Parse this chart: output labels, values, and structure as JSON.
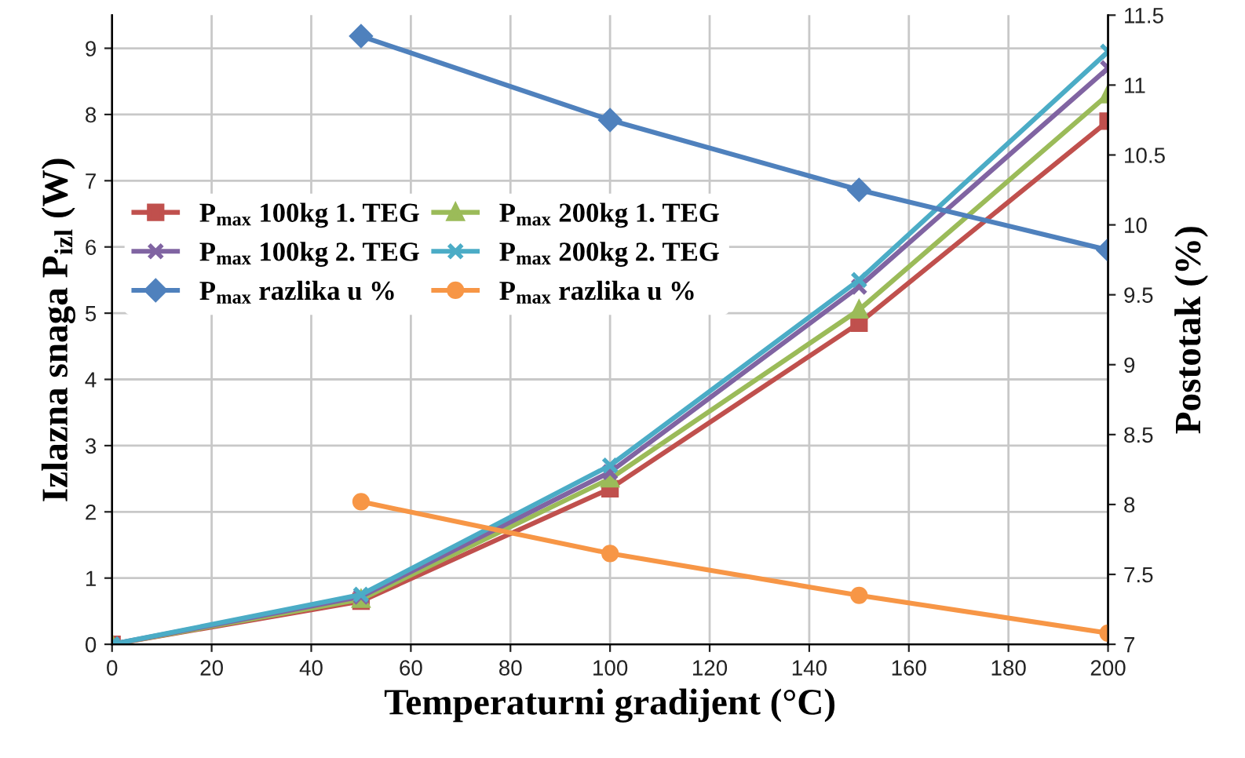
{
  "chart_data": {
    "type": "line",
    "xlabel": "Temperaturni gradijent (°C)",
    "ylabel": "Izlazna snaga P$_{izl}$ (W)",
    "y2label": "Postotak (%)",
    "x": [
      0,
      50,
      100,
      150,
      200
    ],
    "series": [
      {
        "name": "P$_{max}$ 100kg 1. TEG",
        "color": "#c0504d",
        "marker": "square",
        "values": [
          0,
          0.65,
          2.35,
          4.85,
          7.9
        ]
      },
      {
        "name": "P$_{max}$ 200kg 1. TEG",
        "color": "#9bbb59",
        "marker": "triangle",
        "values": [
          0,
          0.68,
          2.5,
          5.05,
          8.3
        ]
      },
      {
        "name": "P$_{max}$ 100kg 2. TEG",
        "color": "#8064a2",
        "marker": "cross",
        "values": [
          0,
          0.72,
          2.6,
          5.4,
          8.7
        ]
      },
      {
        "name": "P$_{max}$ 200kg 2. TEG",
        "color": "#4bacc6",
        "marker": "cross",
        "values": [
          0,
          0.75,
          2.7,
          5.5,
          8.95
        ]
      },
      {
        "name": "P$_{max}$ razlika u %",
        "color": "#4f81bd",
        "marker": "diamond",
        "axis": "y2",
        "x": [
          50,
          100,
          150,
          200
        ],
        "values": [
          11.35,
          10.75,
          10.25,
          9.82
        ]
      },
      {
        "name": "P$_{max}$ razlika u %",
        "color": "#f79646",
        "marker": "circle",
        "axis": "y2",
        "x": [
          50,
          100,
          150,
          200
        ],
        "values": [
          8.02,
          7.65,
          7.35,
          7.08
        ]
      }
    ],
    "xlim": [
      0,
      200
    ],
    "xticks": [
      0,
      20,
      40,
      60,
      80,
      100,
      120,
      140,
      160,
      180,
      200
    ],
    "ylim": [
      0,
      9.5
    ],
    "yticks": [
      0,
      1,
      2,
      3,
      4,
      5,
      6,
      7,
      8,
      9
    ],
    "y2lim": [
      7,
      11.5
    ],
    "y2ticks": [
      7,
      7.5,
      8,
      8.5,
      9,
      9.5,
      10,
      10.5,
      11,
      11.5
    ],
    "grid": true,
    "legend": "left"
  }
}
